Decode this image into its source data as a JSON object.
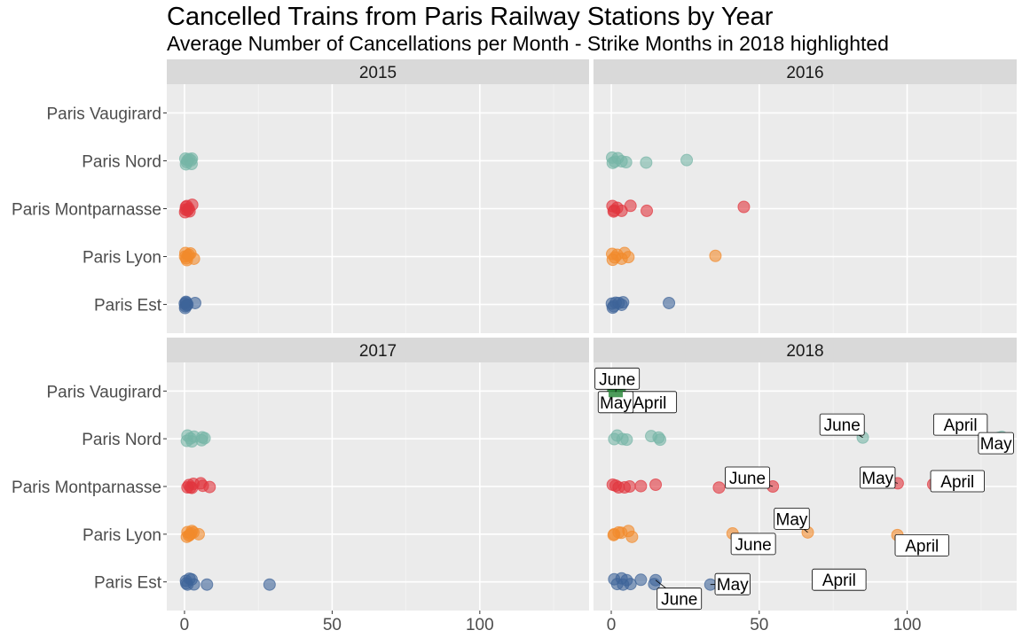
{
  "chart_data": {
    "type": "scatter",
    "title": "Cancelled Trains from Paris Railway Stations by Year",
    "subtitle": "Average Number of Cancellations per Month - Strike Months in 2018 highlighted",
    "stations": [
      "Paris Est",
      "Paris Lyon",
      "Paris Montparnasse",
      "Paris Nord",
      "Paris Vaugirard"
    ],
    "x_ticks": [
      0,
      50,
      100
    ],
    "xlim": [
      -6,
      137
    ],
    "grid": true,
    "legend": "none",
    "colors": {
      "Paris Est": "#3E6499",
      "Paris Lyon": "#F28A2B",
      "Paris Montparnasse": "#E1363E",
      "Paris Nord": "#76B5A6",
      "Paris Vaugirard": "#2E8B3E"
    },
    "panels": [
      {
        "year": "2015",
        "points": {
          "Paris Est": [
            [
              0.1,
              0.05
            ],
            [
              0.3,
              -0.1
            ],
            [
              0.6,
              0.1
            ],
            [
              0.2,
              -0.2
            ],
            [
              1.0,
              0.0
            ],
            [
              0.5,
              0.15
            ],
            [
              0.8,
              -0.05
            ],
            [
              3.6,
              0.08
            ]
          ],
          "Paris Lyon": [
            [
              0.3,
              0.2
            ],
            [
              0.6,
              -0.1
            ],
            [
              1.1,
              0.05
            ],
            [
              2.0,
              0.18
            ],
            [
              0.8,
              -0.2
            ],
            [
              0.2,
              0.0
            ],
            [
              3.2,
              -0.12
            ],
            [
              1.5,
              0.1
            ]
          ],
          "Paris Montparnasse": [
            [
              0.5,
              0.1
            ],
            [
              1.0,
              -0.1
            ],
            [
              0.2,
              -0.2
            ],
            [
              1.4,
              0.0
            ],
            [
              0.8,
              0.15
            ],
            [
              2.6,
              0.22
            ],
            [
              0.4,
              -0.05
            ],
            [
              1.7,
              -0.15
            ]
          ],
          "Paris Nord": [
            [
              0.3,
              0.12
            ],
            [
              0.8,
              -0.08
            ],
            [
              1.5,
              0.1
            ],
            [
              2.2,
              0.02
            ],
            [
              0.5,
              -0.2
            ],
            [
              2.5,
              0.12
            ],
            [
              1.0,
              0.02
            ],
            [
              2.4,
              -0.18
            ]
          ],
          "Paris Vaugirard": []
        }
      },
      {
        "year": "2016",
        "points": {
          "Paris Est": [
            [
              0.2,
              0.05
            ],
            [
              0.8,
              -0.1
            ],
            [
              1.5,
              0.1
            ],
            [
              0.5,
              -0.18
            ],
            [
              2.5,
              0.08
            ],
            [
              3.5,
              -0.02
            ],
            [
              4.0,
              0.12
            ],
            [
              19.5,
              0.08
            ]
          ],
          "Paris Lyon": [
            [
              0.3,
              0.15
            ],
            [
              1.2,
              -0.05
            ],
            [
              2.0,
              0.1
            ],
            [
              4.5,
              0.2
            ],
            [
              5.8,
              -0.03
            ],
            [
              3.5,
              -0.12
            ],
            [
              0.5,
              -0.18
            ],
            [
              35.2,
              0.04
            ]
          ],
          "Paris Montparnasse": [
            [
              0.4,
              0.15
            ],
            [
              1.0,
              -0.1
            ],
            [
              2.0,
              0.05
            ],
            [
              6.5,
              0.16
            ],
            [
              3.5,
              -0.12
            ],
            [
              12.0,
              -0.12
            ],
            [
              0.8,
              -0.16
            ],
            [
              44.8,
              0.1
            ]
          ],
          "Paris Nord": [
            [
              0.3,
              0.18
            ],
            [
              1.2,
              -0.05
            ],
            [
              2.2,
              0.15
            ],
            [
              3.5,
              -0.03
            ],
            [
              5.0,
              -0.08
            ],
            [
              11.8,
              -0.1
            ],
            [
              0.5,
              -0.12
            ],
            [
              25.5,
              0.04
            ]
          ],
          "Paris Vaugirard": []
        }
      },
      {
        "year": "2017",
        "points": {
          "Paris Est": [
            [
              0.5,
              0.06
            ],
            [
              1.0,
              -0.15
            ],
            [
              1.7,
              0.18
            ],
            [
              2.4,
              0.14
            ],
            [
              0.6,
              -0.08
            ],
            [
              3.2,
              -0.14
            ],
            [
              7.6,
              -0.15
            ],
            [
              28.8,
              -0.15
            ]
          ],
          "Paris Lyon": [
            [
              1.0,
              0.12
            ],
            [
              1.5,
              -0.08
            ],
            [
              2.5,
              0.18
            ],
            [
              3.0,
              0.1
            ],
            [
              1.8,
              -0.03
            ],
            [
              4.8,
              0.0
            ],
            [
              0.8,
              -0.15
            ],
            [
              2.2,
              0.04
            ]
          ],
          "Paris Montparnasse": [
            [
              1.5,
              0.08
            ],
            [
              2.5,
              -0.08
            ],
            [
              3.0,
              0.15
            ],
            [
              5.5,
              0.18
            ],
            [
              8.5,
              -0.03
            ],
            [
              6.2,
              0.04
            ],
            [
              2.0,
              -0.05
            ],
            [
              1.0,
              -0.05
            ]
          ],
          "Paris Nord": [
            [
              1.0,
              0.18
            ],
            [
              2.0,
              0.02
            ],
            [
              3.2,
              0.12
            ],
            [
              6.0,
              0.08
            ],
            [
              6.8,
              0.03
            ],
            [
              5.8,
              -0.08
            ],
            [
              2.5,
              -0.15
            ],
            [
              0.8,
              -0.12
            ]
          ],
          "Paris Vaugirard": []
        }
      },
      {
        "year": "2018",
        "points": {
          "Paris Est": [
            [
              1.0,
              0.15
            ],
            [
              3.5,
              0.2
            ],
            [
              5.2,
              0.1
            ],
            [
              10.0,
              0.12
            ],
            [
              6.5,
              -0.12
            ],
            [
              14.5,
              -0.12
            ],
            [
              2.0,
              -0.12
            ],
            [
              4.0,
              -0.15
            ]
          ],
          "Paris Lyon": [
            [
              1.0,
              0.0
            ],
            [
              2.5,
              0.1
            ],
            [
              5.8,
              0.18
            ],
            [
              3.4,
              0.08
            ],
            [
              7.0,
              -0.15
            ],
            [
              0.8,
              -0.05
            ]
          ],
          "Paris Montparnasse": [
            [
              0.5,
              0.1
            ],
            [
              2.5,
              -0.05
            ],
            [
              4.5,
              -0.05
            ],
            [
              6.2,
              0.0
            ],
            [
              10.0,
              0.02
            ],
            [
              15.0,
              0.1
            ],
            [
              1.5,
              0.05
            ]
          ],
          "Paris Nord": [
            [
              1.0,
              -0.02
            ],
            [
              2.0,
              0.18
            ],
            [
              3.8,
              -0.02
            ],
            [
              5.2,
              -0.05
            ],
            [
              13.5,
              0.15
            ],
            [
              16.5,
              -0.05
            ],
            [
              16.0,
              0.07
            ]
          ],
          "Paris Vaugirard": []
        },
        "strike_points": [
          {
            "station": "Paris Est",
            "month": "April",
            "x": 70.0,
            "dy": 0.2,
            "label": "April",
            "lx": 77,
            "lyoff": 0.05
          },
          {
            "station": "Paris Est",
            "month": "May",
            "x": 33.5,
            "dy": -0.15,
            "label": "May",
            "lx": 41,
            "lyoff": -0.05
          },
          {
            "station": "Paris Est",
            "month": "June",
            "x": 15.0,
            "dy": 0.1,
            "label": "June",
            "lx": 23,
            "lyoff": -0.38
          },
          {
            "station": "Paris Lyon",
            "month": "April",
            "x": 96.7,
            "dy": -0.05,
            "label": "April",
            "lx": 105,
            "lyoff": -0.25
          },
          {
            "station": "Paris Lyon",
            "month": "May",
            "x": 66.4,
            "dy": 0.1,
            "label": "May",
            "lx": 61,
            "lyoff": 0.35
          },
          {
            "station": "Paris Lyon",
            "month": "June",
            "x": 41.0,
            "dy": 0.04,
            "label": "June",
            "lx": 48,
            "lyoff": -0.22
          },
          {
            "station": "Paris Montparnasse",
            "month": "April",
            "x": 108.8,
            "dy": 0.12,
            "label": "April",
            "lx": 117,
            "lyoff": 0.12
          },
          {
            "station": "Paris Montparnasse",
            "month": "May",
            "x": 96.8,
            "dy": 0.18,
            "label": "May",
            "lx": 90,
            "lyoff": 0.2
          },
          {
            "station": "Paris Montparnasse",
            "month": "June",
            "x": 54.6,
            "dy": 0.0,
            "label": "June",
            "lx": 46,
            "lyoff": 0.2
          },
          {
            "station": "Paris Montparnasse",
            "month": "June",
            "x": 36.4,
            "dy": -0.06,
            "label": "",
            "lx": 0,
            "lyoff": 0
          },
          {
            "station": "Paris Nord",
            "month": "April",
            "x": 131.0,
            "dy": 0.06,
            "label": "April",
            "lx": 118,
            "lyoff": 0.32
          },
          {
            "station": "Paris Nord",
            "month": "May",
            "x": 132.0,
            "dy": 0.1,
            "label": "May",
            "lx": 130,
            "lyoff": -0.1
          },
          {
            "station": "Paris Nord",
            "month": "June",
            "x": 85.0,
            "dy": 0.07,
            "label": "June",
            "lx": 78,
            "lyoff": 0.32
          },
          {
            "station": "Paris Vaugirard",
            "month": "April",
            "x": 2.5,
            "dy": 0.05,
            "label": "April",
            "lx": 13,
            "lyoff": -0.25
          },
          {
            "station": "Paris Vaugirard",
            "month": "May",
            "x": 1.0,
            "dy": 0.0,
            "label": "May",
            "lx": 1.5,
            "lyoff": -0.25
          },
          {
            "station": "Paris Vaugirard",
            "month": "June",
            "x": 1.5,
            "dy": -0.05,
            "label": "June",
            "lx": 2,
            "lyoff": 0.28
          }
        ]
      }
    ]
  }
}
